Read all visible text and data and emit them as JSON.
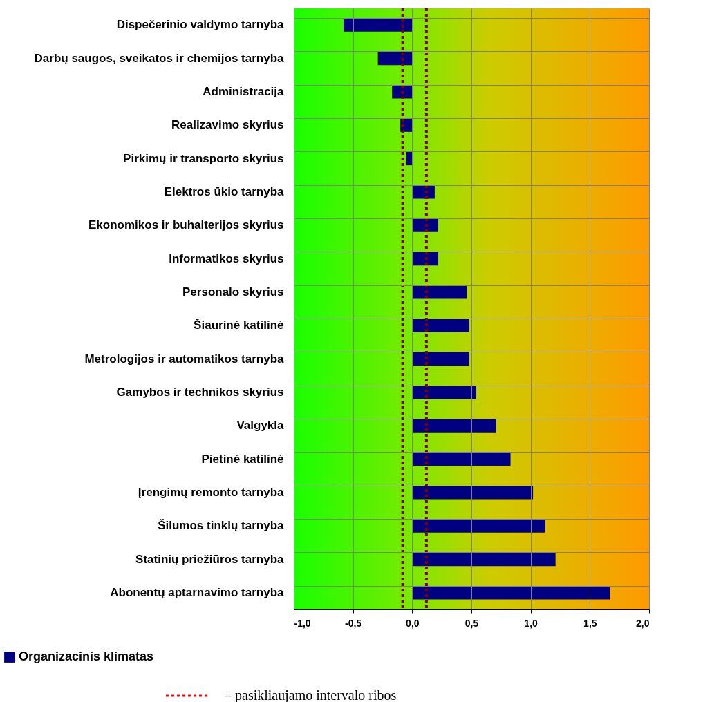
{
  "chart_data": {
    "type": "bar",
    "orientation": "horizontal",
    "categories": [
      "Dispečerinio valdymo tarnyba",
      "Darbų saugos, sveikatos ir chemijos tarnyba",
      "Administracija",
      "Realizavimo skyrius",
      "Pirkimų ir transporto skyrius",
      "Elektros ūkio tarnyba",
      "Ekonomikos ir buhalterijos skyrius",
      "Informatikos skyrius",
      "Personalo skyrius",
      "Šiaurinė katilinė",
      "Metrologijos ir automatikos tarnyba",
      "Gamybos ir technikos skyrius",
      "Valgykla",
      "Pietinė katilinė",
      "Įrengimų remonto tarnyba",
      "Šilumos tinklų tarnyba",
      "Statinių priežiūros tarnyba",
      "Abonentų aptarnavimo tarnyba"
    ],
    "series": [
      {
        "name": "Organizacinis klimatas",
        "color": "#000080",
        "values": [
          -0.58,
          -0.29,
          -0.17,
          -0.1,
          -0.05,
          0.19,
          0.22,
          0.22,
          0.46,
          0.48,
          0.48,
          0.54,
          0.71,
          0.83,
          1.02,
          1.12,
          1.21,
          1.67
        ]
      }
    ],
    "xlim": [
      -1,
      2
    ],
    "xticks": [
      {
        "value": -1,
        "label": "-1,0"
      },
      {
        "value": -0.5,
        "label": "-0,5"
      },
      {
        "value": 0,
        "label": "0,0"
      },
      {
        "value": 0.5,
        "label": "0,5"
      },
      {
        "value": 1,
        "label": "1,0"
      },
      {
        "value": 1.5,
        "label": "1,5"
      },
      {
        "value": 2,
        "label": "2,0"
      }
    ],
    "ref_lines": [
      {
        "axis": "x",
        "value": -0.08,
        "color": "#800000",
        "line_style": "dotted"
      },
      {
        "axis": "x",
        "value": 0.12,
        "color": "#800000",
        "line_style": "dotted"
      }
    ],
    "annotations": [
      "– pasikliaujamo intervalo ribos"
    ],
    "grid": true,
    "legend": "bottom left"
  }
}
